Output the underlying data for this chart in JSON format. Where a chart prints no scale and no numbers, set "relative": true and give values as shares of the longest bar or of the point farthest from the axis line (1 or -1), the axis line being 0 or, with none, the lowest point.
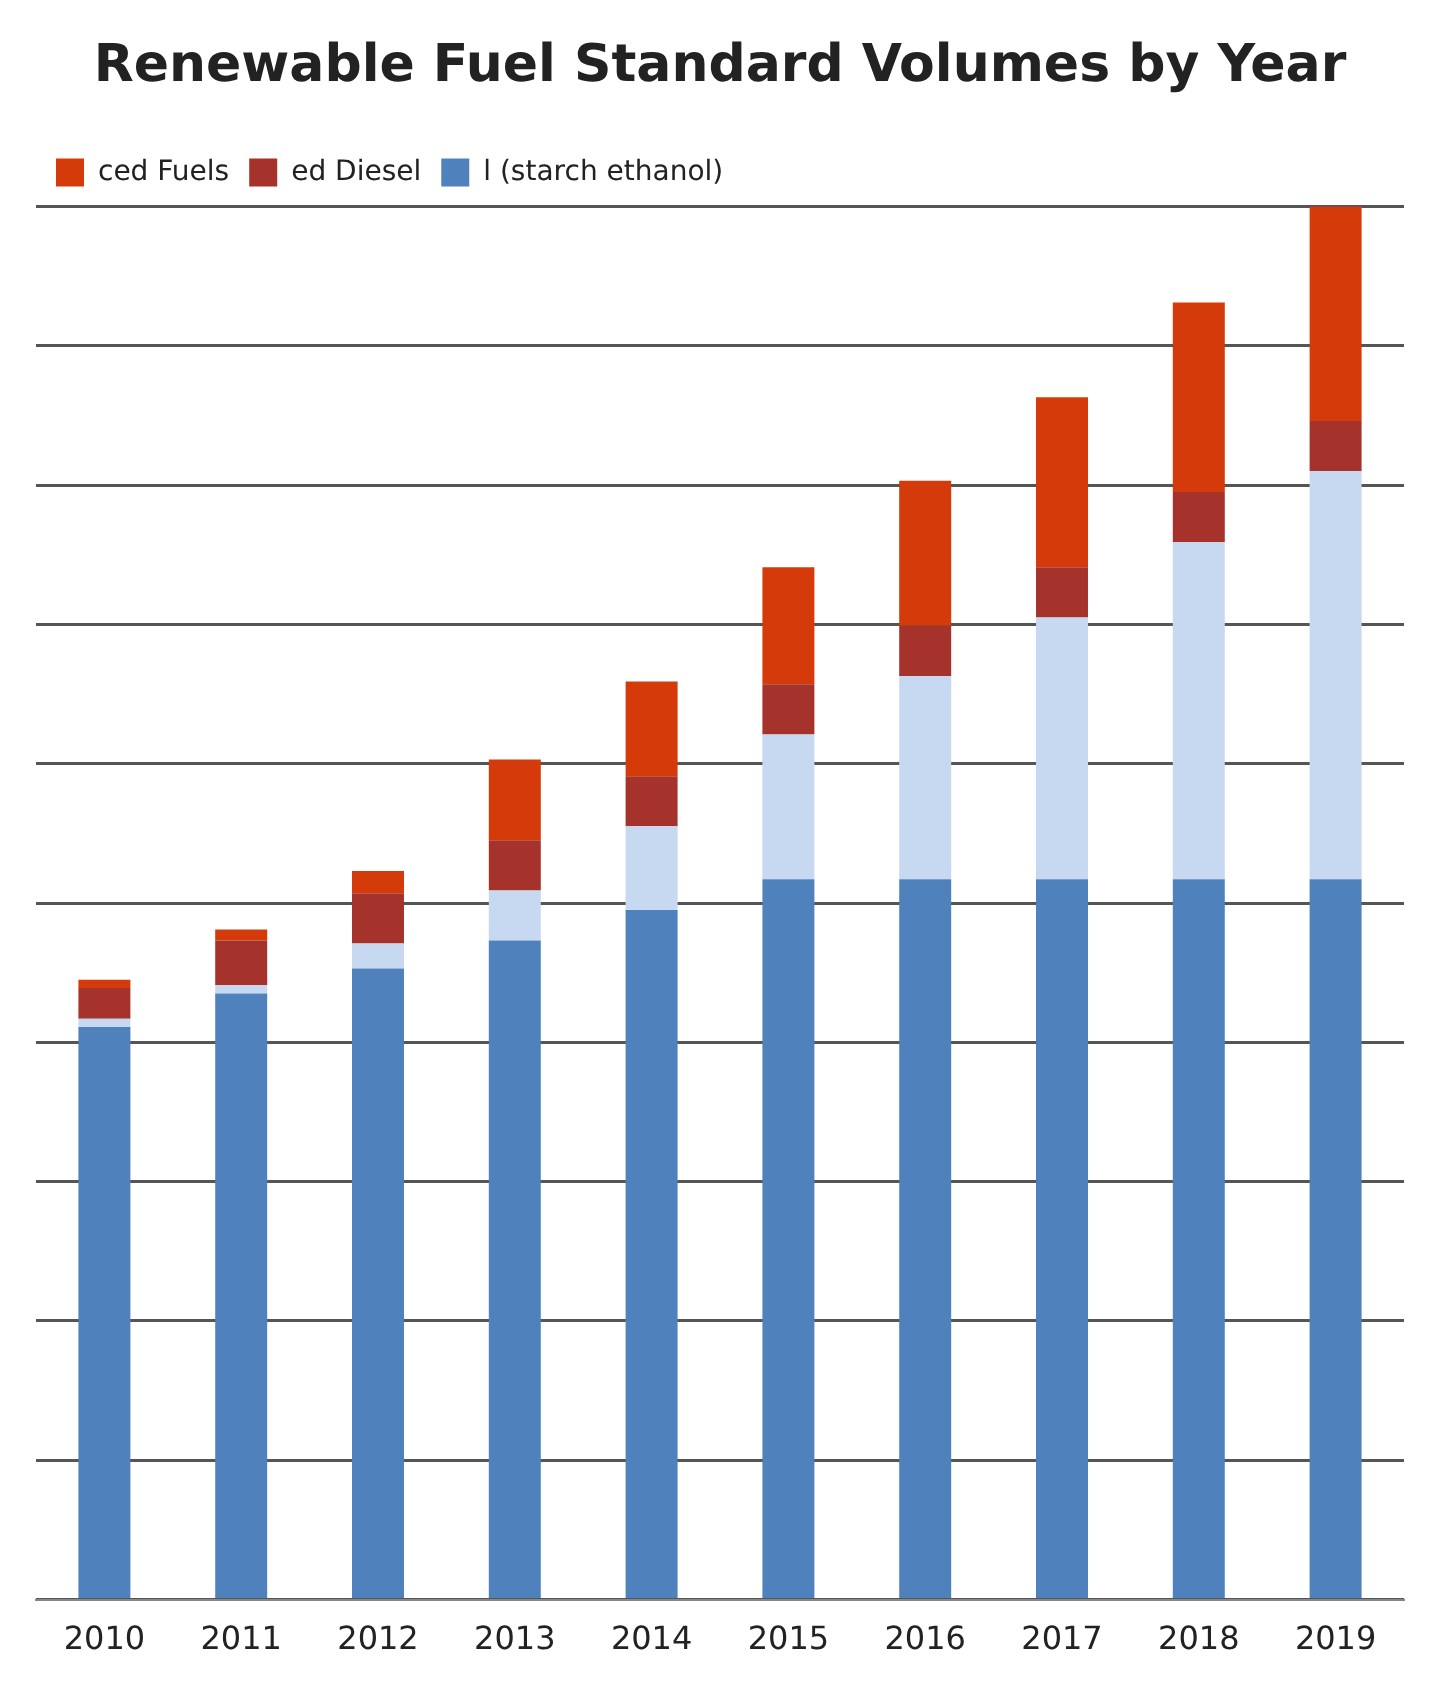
{
  "chart_data": {
    "type": "bar",
    "title": "Renewable Fuel Standard Volumes by Year",
    "categories": [
      "2010",
      "2011",
      "2012",
      "2013",
      "2014",
      "2015",
      "2016",
      "2017",
      "2018",
      "2019"
    ],
    "relative": true,
    "stacked": true,
    "grid": "y",
    "legend": "top left",
    "series": [
      {
        "name": "l (starch ethanol)",
        "color": "#4f81bd",
        "values": [
          0.411,
          0.435,
          0.453,
          0.473,
          0.495,
          0.517,
          0.517,
          0.517,
          0.517,
          0.517
        ]
      },
      {
        "color": "#c6d9f0",
        "values": [
          0.006,
          0.006,
          0.018,
          0.036,
          0.06,
          0.104,
          0.146,
          0.188,
          0.242,
          0.293
        ]
      },
      {
        "name": "ed Diesel",
        "color": "#a5332b",
        "values": [
          0.022,
          0.032,
          0.036,
          0.036,
          0.036,
          0.036,
          0.036,
          0.036,
          0.036,
          0.036
        ]
      },
      {
        "name": "ced Fuels",
        "color": "#d53a0a",
        "values": [
          0.006,
          0.008,
          0.016,
          0.058,
          0.068,
          0.084,
          0.104,
          0.122,
          0.136,
          0.154
        ]
      }
    ]
  }
}
